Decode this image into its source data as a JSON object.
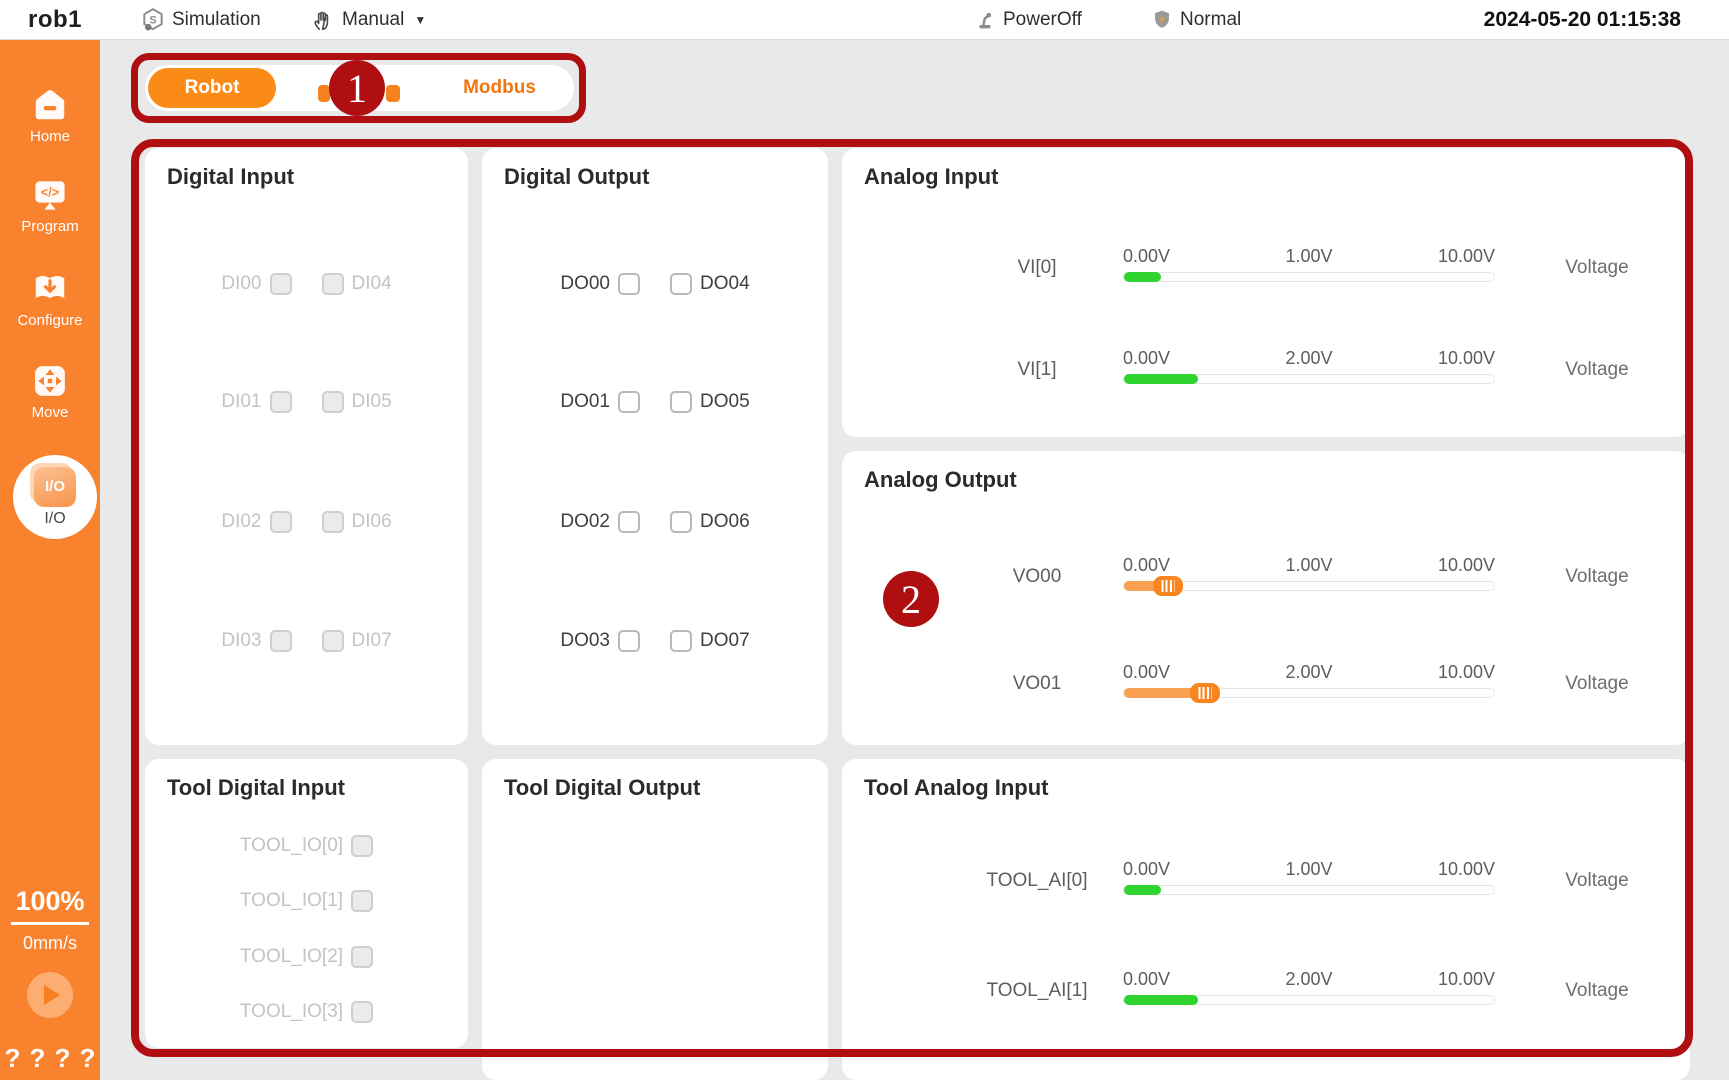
{
  "topbar": {
    "robot_name": "rob1",
    "simulation_label": "Simulation",
    "mode_label": "Manual",
    "power_label": "PowerOff",
    "safety_label": "Normal",
    "datetime": "2024-05-20 01:15:38"
  },
  "sidebar": {
    "items": [
      {
        "label": "Home"
      },
      {
        "label": "Program"
      },
      {
        "label": "Configure"
      },
      {
        "label": "Move"
      },
      {
        "label": "I/O",
        "active": true
      }
    ],
    "io_badge_text": "I/O",
    "speed_percent": "100%",
    "speed_rate": "0mm/s",
    "help_marks": [
      "?",
      "?",
      "?",
      "?"
    ]
  },
  "tabs": {
    "robot": "Robot",
    "obscured": "",
    "modbus": "Modbus"
  },
  "annotations": {
    "badge_1": "1",
    "badge_2": "2"
  },
  "panels": {
    "digital_input": {
      "title": "Digital Input",
      "rows": [
        [
          "DI00",
          "DI04"
        ],
        [
          "DI01",
          "DI05"
        ],
        [
          "DI02",
          "DI06"
        ],
        [
          "DI03",
          "DI07"
        ]
      ]
    },
    "digital_output": {
      "title": "Digital Output",
      "rows": [
        [
          "DO00",
          "DO04"
        ],
        [
          "DO01",
          "DO05"
        ],
        [
          "DO02",
          "DO06"
        ],
        [
          "DO03",
          "DO07"
        ]
      ]
    },
    "analog_input": {
      "title": "Analog Input",
      "rows": [
        {
          "name": "VI[0]",
          "min": "0.00V",
          "value": "1.00V",
          "max": "10.00V",
          "unit": "Voltage",
          "percent": 10
        },
        {
          "name": "VI[1]",
          "min": "0.00V",
          "value": "2.00V",
          "max": "10.00V",
          "unit": "Voltage",
          "percent": 20
        }
      ]
    },
    "analog_output": {
      "title": "Analog Output",
      "rows": [
        {
          "name": "VO00",
          "min": "0.00V",
          "value": "1.00V",
          "max": "10.00V",
          "unit": "Voltage",
          "percent": 10
        },
        {
          "name": "VO01",
          "min": "0.00V",
          "value": "2.00V",
          "max": "10.00V",
          "unit": "Voltage",
          "percent": 20
        }
      ]
    },
    "tool_digital_input": {
      "title": "Tool Digital Input",
      "rows": [
        "TOOL_IO[0]",
        "TOOL_IO[1]",
        "TOOL_IO[2]",
        "TOOL_IO[3]"
      ]
    },
    "tool_digital_output": {
      "title": "Tool Digital Output"
    },
    "tool_analog_input": {
      "title": "Tool Analog Input",
      "rows": [
        {
          "name": "TOOL_AI[0]",
          "min": "0.00V",
          "value": "1.00V",
          "max": "10.00V",
          "unit": "Voltage",
          "percent": 10
        },
        {
          "name": "TOOL_AI[1]",
          "min": "0.00V",
          "value": "2.00V",
          "max": "10.00V",
          "unit": "Voltage",
          "percent": 20
        }
      ]
    }
  },
  "colors": {
    "accent": "#f8822d",
    "pill": "#fa8b17",
    "tab-text": "#f0760f",
    "green": "#2fd430",
    "slider-fill": "#f9a052",
    "slider-handle": "#f8851f",
    "ored": "#b00f12"
  }
}
